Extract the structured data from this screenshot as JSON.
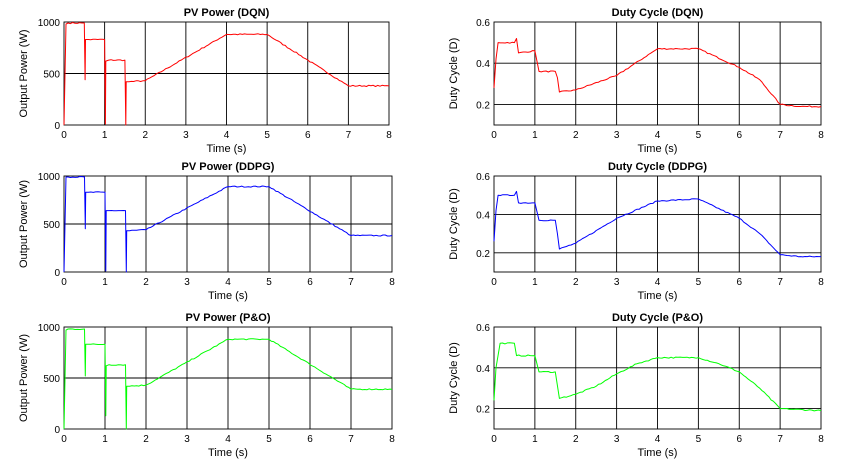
{
  "chart_data": [
    {
      "type": "line",
      "title": "PV Power (DQN)",
      "xlabel": "Time (s)",
      "ylabel": "Output Power (W)",
      "xlim": [
        0,
        8
      ],
      "ylim": [
        0,
        1000
      ],
      "xticks": [
        "0",
        "1",
        "2",
        "3",
        "4",
        "5",
        "6",
        "7",
        "8"
      ],
      "yticks": [
        "0",
        "500",
        "1000"
      ],
      "grid": true,
      "color": "#ff0000",
      "series": [
        {
          "x": [
            0,
            0.05,
            0.1,
            0.5,
            0.52,
            0.53,
            0.6,
            1.0,
            1.02,
            1.03,
            1.1,
            1.5,
            1.52,
            1.53,
            1.6,
            2.0,
            4.0,
            5.0,
            7.0,
            8.0
          ],
          "values": [
            0,
            980,
            990,
            990,
            440,
            830,
            830,
            830,
            10,
            620,
            630,
            630,
            0,
            420,
            420,
            430,
            880,
            880,
            380,
            380
          ]
        }
      ]
    },
    {
      "type": "line",
      "title": "Duty Cycle (DQN)",
      "xlabel": "Time (s)",
      "ylabel": "Duty Cycle (D)",
      "xlim": [
        0,
        8
      ],
      "ylim": [
        0.1,
        0.6
      ],
      "xticks": [
        "0",
        "1",
        "2",
        "3",
        "4",
        "5",
        "6",
        "7",
        "8"
      ],
      "yticks": [
        "0.2",
        "0.4",
        "0.6"
      ],
      "grid": true,
      "color": "#ff0000",
      "series": [
        {
          "x": [
            0,
            0.05,
            0.1,
            0.5,
            0.55,
            0.6,
            1.0,
            1.1,
            1.5,
            1.55,
            1.6,
            2.0,
            3.0,
            4.0,
            4.5,
            5.0,
            6.0,
            6.5,
            7.0,
            7.5,
            8.0
          ],
          "values": [
            0.28,
            0.42,
            0.5,
            0.5,
            0.52,
            0.45,
            0.46,
            0.36,
            0.36,
            0.33,
            0.26,
            0.27,
            0.34,
            0.47,
            0.47,
            0.47,
            0.38,
            0.32,
            0.2,
            0.19,
            0.19
          ]
        }
      ]
    },
    {
      "type": "line",
      "title": "PV Power (DDPG)",
      "xlabel": "Time (s)",
      "ylabel": "Output Power (W)",
      "xlim": [
        0,
        8
      ],
      "ylim": [
        0,
        1000
      ],
      "xticks": [
        "0",
        "1",
        "2",
        "3",
        "4",
        "5",
        "6",
        "7",
        "8"
      ],
      "yticks": [
        "0",
        "500",
        "1000"
      ],
      "grid": true,
      "color": "#0000ff",
      "series": [
        {
          "x": [
            0,
            0.05,
            0.1,
            0.5,
            0.52,
            0.53,
            0.6,
            1.0,
            1.02,
            1.03,
            1.1,
            1.5,
            1.52,
            1.53,
            1.6,
            2.0,
            4.0,
            5.0,
            7.0,
            8.0
          ],
          "values": [
            0,
            990,
            990,
            990,
            450,
            830,
            830,
            830,
            10,
            640,
            640,
            640,
            0,
            430,
            430,
            440,
            890,
            890,
            380,
            380
          ]
        }
      ]
    },
    {
      "type": "line",
      "title": "Duty Cycle (DDPG)",
      "xlabel": "Time (s)",
      "ylabel": "Duty Cycle (D)",
      "xlim": [
        0,
        8
      ],
      "ylim": [
        0.1,
        0.6
      ],
      "xticks": [
        "0",
        "1",
        "2",
        "3",
        "4",
        "5",
        "6",
        "7",
        "8"
      ],
      "yticks": [
        "0.2",
        "0.4",
        "0.6"
      ],
      "grid": true,
      "color": "#0000ff",
      "series": [
        {
          "x": [
            0,
            0.05,
            0.1,
            0.5,
            0.55,
            0.6,
            1.0,
            1.1,
            1.5,
            1.55,
            1.6,
            2.0,
            3.0,
            4.0,
            5.0,
            6.0,
            6.5,
            7.0,
            7.5,
            8.0
          ],
          "values": [
            0.26,
            0.42,
            0.5,
            0.5,
            0.52,
            0.46,
            0.46,
            0.37,
            0.37,
            0.3,
            0.22,
            0.25,
            0.38,
            0.47,
            0.48,
            0.38,
            0.3,
            0.19,
            0.18,
            0.18
          ]
        }
      ]
    },
    {
      "type": "line",
      "title": "PV Power (P&O)",
      "xlabel": "Time (s)",
      "ylabel": "Output Power (W)",
      "xlim": [
        0,
        8
      ],
      "ylim": [
        0,
        1000
      ],
      "xticks": [
        "0",
        "1",
        "2",
        "3",
        "4",
        "5",
        "6",
        "7",
        "8"
      ],
      "yticks": [
        "0",
        "500",
        "1000"
      ],
      "grid": true,
      "color": "#00ff00",
      "series": [
        {
          "x": [
            0,
            0.05,
            0.1,
            0.5,
            0.52,
            0.53,
            0.6,
            1.0,
            1.02,
            1.03,
            1.1,
            1.5,
            1.52,
            1.53,
            1.6,
            2.0,
            4.0,
            5.0,
            7.0,
            8.0
          ],
          "values": [
            0,
            970,
            980,
            980,
            520,
            830,
            830,
            830,
            130,
            620,
            630,
            630,
            0,
            420,
            420,
            430,
            880,
            880,
            390,
            390
          ]
        }
      ]
    },
    {
      "type": "line",
      "title": "Duty Cycle (P&O)",
      "xlabel": "Time (s)",
      "ylabel": "Duty Cycle (D)",
      "xlim": [
        0,
        8
      ],
      "ylim": [
        0.1,
        0.6
      ],
      "xticks": [
        "0",
        "1",
        "2",
        "3",
        "4",
        "5",
        "6",
        "7",
        "8"
      ],
      "yticks": [
        "0.2",
        "0.4",
        "0.6"
      ],
      "grid": true,
      "color": "#00ff00",
      "series": [
        {
          "x": [
            0,
            0.05,
            0.15,
            0.5,
            0.55,
            1.0,
            1.1,
            1.5,
            1.6,
            2.0,
            2.5,
            3.0,
            3.5,
            4.0,
            5.0,
            5.5,
            6.0,
            6.5,
            7.0,
            8.0
          ],
          "values": [
            0.24,
            0.4,
            0.52,
            0.52,
            0.46,
            0.46,
            0.38,
            0.38,
            0.25,
            0.27,
            0.31,
            0.37,
            0.42,
            0.45,
            0.45,
            0.42,
            0.38,
            0.3,
            0.2,
            0.19
          ]
        }
      ]
    }
  ]
}
